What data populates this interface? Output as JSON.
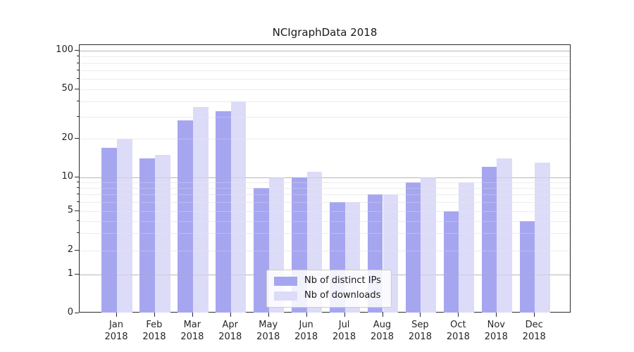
{
  "chart_data": {
    "type": "bar",
    "title": "NCIgraphData 2018",
    "categories": [
      "Jan",
      "Feb",
      "Mar",
      "Apr",
      "May",
      "Jun",
      "Jul",
      "Aug",
      "Sep",
      "Oct",
      "Nov",
      "Dec"
    ],
    "x_year_label": "2018",
    "series": [
      {
        "name": "Nb of distinct IPs",
        "color": "#a6a6f0",
        "values": [
          17,
          14,
          28,
          33,
          8,
          10,
          6,
          7,
          9,
          5,
          12,
          4
        ]
      },
      {
        "name": "Nb of downloads",
        "color": "#dcdcf8",
        "values": [
          20,
          15,
          36,
          40,
          10,
          11,
          6,
          7,
          10,
          9,
          14,
          13
        ]
      }
    ],
    "xlabel": "",
    "ylabel": "",
    "yscale": "log-like (0 shown at baseline)",
    "ylim": [
      0,
      110
    ],
    "y_tick_values": [
      100,
      50,
      20,
      10,
      5,
      2,
      1,
      0
    ],
    "y_tick_labels": [
      "100",
      "50",
      "20",
      "10",
      "5",
      "2",
      "1",
      "0"
    ],
    "y_major_grid_values": [
      1,
      10,
      100
    ],
    "y_minor_grid_values": [
      2,
      3,
      4,
      5,
      6,
      7,
      8,
      9,
      20,
      30,
      40,
      50,
      60,
      70,
      80,
      90
    ],
    "y_minor_tickmark_values": [
      3,
      4,
      6,
      7,
      8,
      9,
      30,
      40,
      60,
      70,
      80,
      90
    ],
    "grid": true,
    "legend": {
      "position": "lower center",
      "entries": [
        "Nb of distinct IPs",
        "Nb of downloads"
      ]
    },
    "colors": {
      "major_grid": "#bdbdbd",
      "minor_grid": "#ececec",
      "axis": "#2b2b2b",
      "text": "#262626",
      "background": "#ffffff"
    }
  }
}
